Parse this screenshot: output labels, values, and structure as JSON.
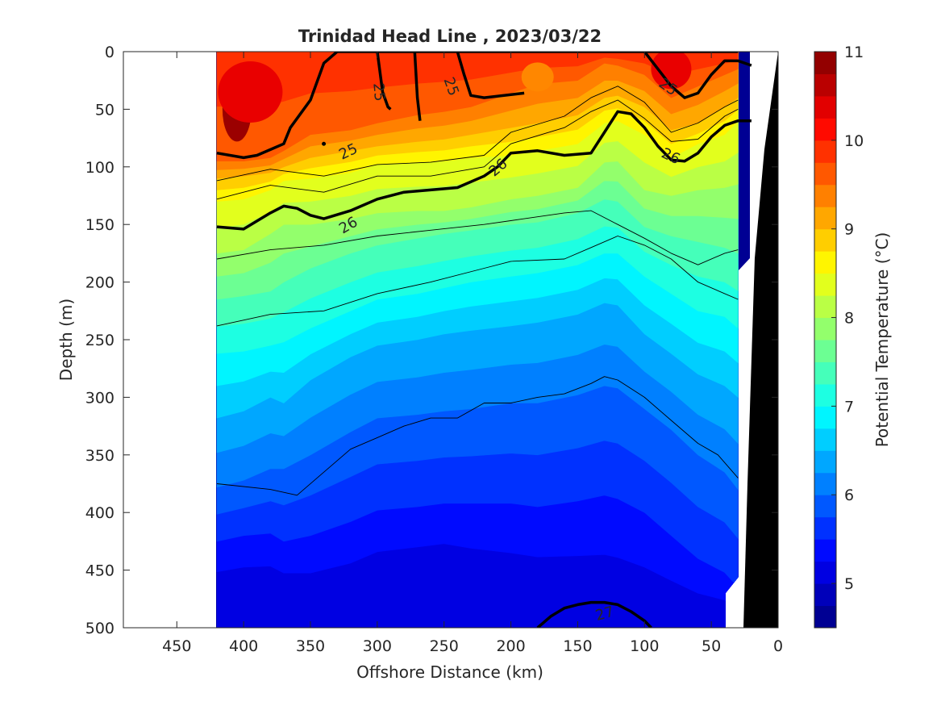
{
  "chart_data": {
    "type": "heatmap",
    "subtype": "filled-contour section",
    "title": "Trinidad Head Line , 2023/03/22",
    "xlabel": "Offshore Distance (km)",
    "ylabel": "Depth (m)",
    "xlim": [
      490,
      0
    ],
    "ylim": [
      500,
      0
    ],
    "x_reversed": true,
    "y_reversed": true,
    "x_ticks": [
      "450",
      "400",
      "350",
      "300",
      "250",
      "200",
      "150",
      "100",
      "50",
      "0"
    ],
    "y_ticks": [
      "0",
      "50",
      "100",
      "150",
      "200",
      "250",
      "300",
      "350",
      "400",
      "450",
      "500"
    ],
    "data_x_range": [
      420,
      20
    ],
    "colorbar": {
      "label": "Potential Temperature (°C)",
      "range": [
        4.5,
        11
      ],
      "step": 0.25,
      "ticks": [
        "5",
        "6",
        "7",
        "8",
        "9",
        "10",
        "11"
      ],
      "colormap": "jet"
    },
    "temperature_isotherm_depths": {
      "x": [
        420,
        400,
        380,
        370,
        350,
        320,
        300,
        270,
        250,
        230,
        200,
        180,
        150,
        130,
        120,
        100,
        80,
        60,
        40,
        30
      ],
      "levels": [
        {
          "temp": 10.0,
          "depths": [
            0,
            0,
            0,
            0,
            0,
            0,
            0,
            0,
            0,
            0,
            0,
            0,
            0,
            0,
            0,
            0,
            0,
            0,
            0,
            0
          ]
        },
        {
          "temp": 9.5,
          "depths": [
            95,
            95,
            92,
            86,
            72,
            68,
            62,
            55,
            52,
            48,
            36,
            28,
            25,
            10,
            12,
            20,
            40,
            30,
            20,
            15
          ]
        },
        {
          "temp": 9.0,
          "depths": [
            110,
            108,
            105,
            100,
            92,
            86,
            82,
            78,
            76,
            72,
            66,
            62,
            55,
            40,
            38,
            48,
            68,
            62,
            48,
            40
          ]
        },
        {
          "temp": 8.5,
          "depths": [
            130,
            128,
            120,
            112,
            110,
            105,
            98,
            96,
            95,
            92,
            90,
            86,
            80,
            62,
            60,
            72,
            92,
            80,
            72,
            60
          ]
        },
        {
          "temp": 8.0,
          "depths": [
            175,
            172,
            158,
            150,
            150,
            145,
            140,
            138,
            138,
            135,
            128,
            125,
            118,
            96,
            95,
            120,
            125,
            120,
            118,
            115
          ]
        },
        {
          "temp": 7.5,
          "depths": [
            215,
            212,
            208,
            200,
            188,
            175,
            168,
            162,
            158,
            155,
            150,
            148,
            140,
            128,
            130,
            152,
            160,
            165,
            170,
            175
          ]
        },
        {
          "temp": 7.0,
          "depths": [
            262,
            260,
            255,
            252,
            240,
            225,
            215,
            210,
            205,
            200,
            195,
            192,
            185,
            175,
            175,
            195,
            210,
            225,
            230,
            240
          ]
        },
        {
          "temp": 6.5,
          "depths": [
            318,
            312,
            300,
            305,
            285,
            265,
            255,
            250,
            245,
            242,
            238,
            235,
            228,
            218,
            220,
            245,
            262,
            280,
            290,
            300
          ]
        },
        {
          "temp": 6.0,
          "depths": [
            378,
            372,
            362,
            362,
            350,
            330,
            318,
            315,
            312,
            310,
            305,
            305,
            298,
            290,
            292,
            310,
            328,
            350,
            365,
            380
          ]
        },
        {
          "temp": 5.5,
          "depths": [
            425,
            420,
            418,
            425,
            420,
            408,
            398,
            395,
            392,
            392,
            392,
            395,
            390,
            385,
            388,
            400,
            420,
            440,
            452,
            465
          ]
        },
        {
          "temp": 5.0,
          "depths": [
            478,
            475,
            475,
            480,
            485,
            480,
            470,
            465,
            462,
            470,
            478,
            482,
            485,
            488,
            490,
            495,
            498,
            500,
            500,
            500
          ]
        }
      ]
    },
    "density_contours": [
      {
        "label": "25",
        "x": [
          420,
          400,
          390,
          380,
          370,
          365,
          350,
          340,
          330,
          320,
          310,
          300,
          290,
          280,
          270,
          260,
          250,
          240,
          230,
          220,
          210,
          200,
          190,
          180,
          170,
          160,
          150,
          140,
          130,
          120,
          110,
          100,
          90,
          80,
          70,
          60,
          50,
          40,
          30
        ],
        "depths": [
          88,
          92,
          90,
          85,
          80,
          66,
          42,
          10,
          0,
          0,
          0,
          0,
          0,
          0,
          0,
          0,
          0,
          0,
          0,
          0,
          0,
          0,
          0,
          0,
          0,
          0,
          0,
          0,
          0,
          0,
          0,
          0,
          0,
          0,
          0,
          0,
          0,
          0,
          0
        ]
      },
      {
        "label": "26",
        "x": [
          420,
          400,
          380,
          370,
          360,
          350,
          340,
          320,
          300,
          280,
          260,
          240,
          220,
          210,
          200,
          180,
          160,
          140,
          130,
          120,
          110,
          100,
          90,
          80,
          70,
          60,
          50,
          40,
          30,
          20
        ],
        "depths": [
          152,
          154,
          140,
          134,
          136,
          142,
          145,
          138,
          128,
          122,
          120,
          118,
          108,
          100,
          88,
          86,
          90,
          88,
          70,
          52,
          54,
          66,
          82,
          94,
          95,
          88,
          74,
          64,
          60,
          60
        ]
      },
      {
        "label": "27",
        "x": [
          180,
          170,
          160,
          150,
          140,
          130,
          120,
          110,
          100,
          95
        ],
        "depths": [
          500,
          490,
          483,
          480,
          478,
          478,
          480,
          486,
          494,
          500
        ]
      }
    ],
    "thin_contours": [
      {
        "x": [
          420,
          380,
          340,
          300,
          260,
          220,
          190,
          160,
          140,
          120,
          100,
          80,
          60,
          40,
          30
        ],
        "depths": [
          180,
          172,
          168,
          160,
          155,
          150,
          145,
          140,
          138,
          150,
          162,
          175,
          185,
          175,
          172
        ]
      },
      {
        "x": [
          420,
          380,
          340,
          300,
          260,
          220,
          200,
          160,
          140,
          120,
          100,
          80,
          60,
          40,
          30
        ],
        "depths": [
          238,
          228,
          225,
          210,
          200,
          188,
          182,
          180,
          170,
          160,
          168,
          180,
          200,
          210,
          215
        ]
      },
      {
        "x": [
          420,
          380,
          360,
          340,
          320,
          300,
          280,
          260,
          240,
          220,
          200,
          180,
          160,
          140,
          130,
          120,
          100,
          80,
          60,
          45,
          30
        ],
        "depths": [
          375,
          380,
          385,
          365,
          345,
          335,
          325,
          318,
          318,
          305,
          305,
          300,
          297,
          288,
          282,
          285,
          300,
          320,
          340,
          350,
          370
        ]
      }
    ],
    "annotations": [
      "25",
      "25",
      "25",
      "25",
      "26",
      "26",
      "26",
      "26",
      "27"
    ]
  }
}
